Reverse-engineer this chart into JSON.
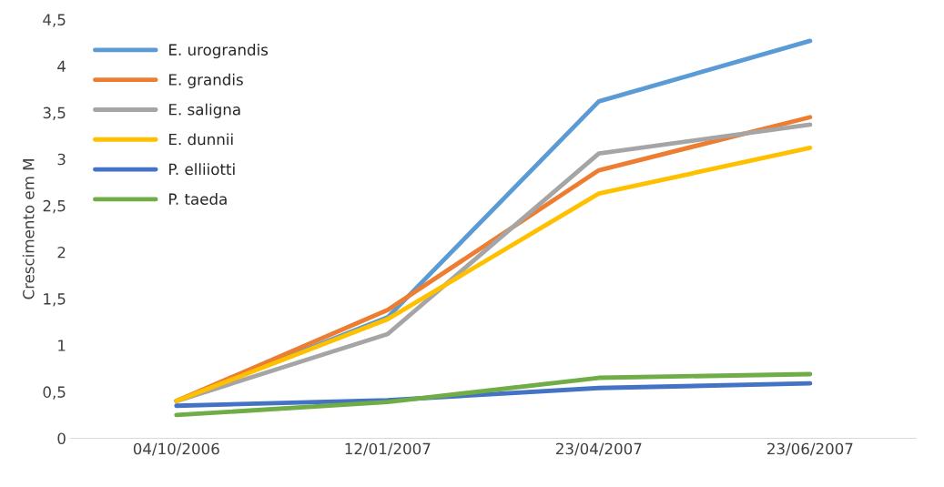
{
  "chart_data": {
    "type": "line",
    "ylabel": "Crescimento em M",
    "categories": [
      "04/10/2006",
      "12/01/2007",
      "23/04/2007",
      "23/06/2007"
    ],
    "series": [
      {
        "name": "E. urograndis",
        "color": "#5b9bd5",
        "values": [
          0.4,
          1.3,
          3.62,
          4.27
        ]
      },
      {
        "name": "E. grandis",
        "color": "#ed7d31",
        "values": [
          0.4,
          1.38,
          2.88,
          3.45
        ]
      },
      {
        "name": "E. saligna",
        "color": "#a5a5a5",
        "values": [
          0.4,
          1.12,
          3.06,
          3.37
        ]
      },
      {
        "name": "E. dunnii",
        "color": "#ffc000",
        "values": [
          0.4,
          1.28,
          2.63,
          3.12
        ]
      },
      {
        "name": "P. elliiotti",
        "color": "#4472c4",
        "values": [
          0.35,
          0.41,
          0.54,
          0.59
        ]
      },
      {
        "name": "P. taeda",
        "color": "#70ad47",
        "values": [
          0.25,
          0.39,
          0.65,
          0.69
        ]
      }
    ],
    "ylim": [
      0,
      4.5
    ],
    "yticks": [
      0,
      {
        "value": 0.5,
        "label": "0,5"
      },
      1,
      {
        "value": 1.5,
        "label": "1,5"
      },
      2,
      {
        "value": 2.5,
        "label": "2,5"
      },
      3,
      {
        "value": 3.5,
        "label": "3,5"
      },
      4,
      {
        "value": 4.5,
        "label": "4,5"
      }
    ],
    "grid": false,
    "legend": "top left",
    "marker": "none",
    "line_style": "solid"
  }
}
